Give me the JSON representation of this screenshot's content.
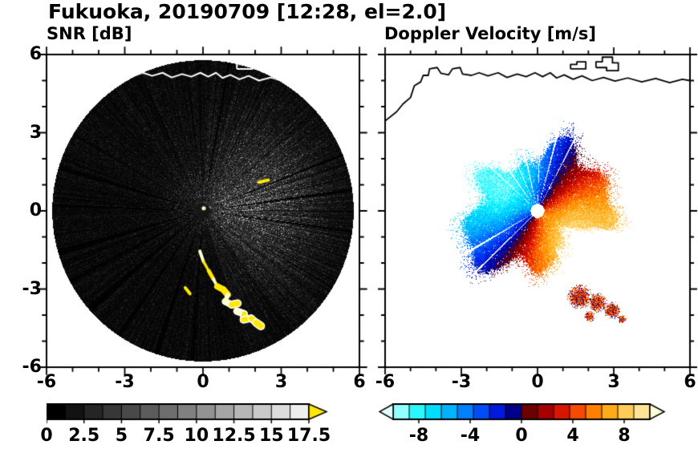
{
  "header": {
    "title": "Fukuoka, 20190709 [12:28, el=2.0]"
  },
  "panels": {
    "snr": {
      "title": "SNR [dB]",
      "x_tick_labels": [
        "-6",
        "-3",
        "0",
        "3",
        "6"
      ],
      "y_tick_labels": [
        "6",
        "3",
        "0",
        "-3",
        "-6"
      ],
      "colorbar_tick_labels": [
        "0",
        "2.5",
        "5",
        "7.5",
        "10",
        "12.5",
        "15",
        "17.5"
      ]
    },
    "doppler": {
      "title": "Doppler Velocity [m/s]",
      "x_tick_labels": [
        "-6",
        "-3",
        "0",
        "3",
        "6"
      ],
      "colorbar_tick_labels": [
        "-8",
        "-4",
        "0",
        "4",
        "8"
      ]
    }
  },
  "coastline": {
    "mainland": [
      [
        -6,
        3.45
      ],
      [
        -5.55,
        3.8
      ],
      [
        -5.3,
        4.1
      ],
      [
        -5.0,
        4.35
      ],
      [
        -4.85,
        4.8
      ],
      [
        -4.6,
        4.95
      ],
      [
        -4.5,
        5.2
      ],
      [
        -4.3,
        5.2
      ],
      [
        -4.25,
        5.45
      ],
      [
        -3.95,
        5.5
      ],
      [
        -3.8,
        5.28
      ],
      [
        -3.5,
        5.22
      ],
      [
        -3.35,
        5.45
      ],
      [
        -3.05,
        5.5
      ],
      [
        -2.95,
        5.25
      ],
      [
        -2.6,
        5.2
      ],
      [
        -2.3,
        5.3
      ],
      [
        -1.95,
        5.18
      ],
      [
        -1.55,
        5.3
      ],
      [
        -1.2,
        5.12
      ],
      [
        -0.8,
        5.25
      ],
      [
        -0.45,
        5.15
      ],
      [
        -0.1,
        5.3
      ],
      [
        0.2,
        5.15
      ],
      [
        0.5,
        5.3
      ],
      [
        0.75,
        5.1
      ],
      [
        1.05,
        5.22
      ],
      [
        1.4,
        5.05
      ],
      [
        1.75,
        5.18
      ],
      [
        2.15,
        5.0
      ],
      [
        2.6,
        5.12
      ],
      [
        3.05,
        4.98
      ],
      [
        3.55,
        5.1
      ],
      [
        4.1,
        4.95
      ],
      [
        4.65,
        5.08
      ],
      [
        5.2,
        4.92
      ],
      [
        5.7,
        5.05
      ],
      [
        6.0,
        5.0
      ]
    ],
    "islands": [
      [
        [
          1.3,
          5.45
        ],
        [
          1.9,
          5.45
        ],
        [
          1.9,
          5.72
        ],
        [
          1.55,
          5.72
        ],
        [
          1.55,
          5.62
        ],
        [
          1.3,
          5.62
        ],
        [
          1.3,
          5.45
        ]
      ],
      [
        [
          2.3,
          5.5
        ],
        [
          2.72,
          5.5
        ],
        [
          2.72,
          5.38
        ],
        [
          3.18,
          5.38
        ],
        [
          3.18,
          5.68
        ],
        [
          2.95,
          5.68
        ],
        [
          2.95,
          5.9
        ],
        [
          2.55,
          5.9
        ],
        [
          2.55,
          5.72
        ],
        [
          2.3,
          5.72
        ],
        [
          2.3,
          5.5
        ]
      ]
    ]
  },
  "chart_data": [
    {
      "type": "heatmap",
      "variant": "radar_ppi",
      "title": "SNR [dB]",
      "x_range": [
        -6,
        6
      ],
      "y_range": [
        -6,
        6
      ],
      "x_ticks": [
        -6,
        -3,
        0,
        3,
        6
      ],
      "y_ticks": [
        6,
        3,
        0,
        -3,
        -6
      ],
      "minor_tick_step": 1,
      "scan_radius_km": 5.78,
      "colorbar": {
        "min": 0,
        "max": 17.5,
        "ticks": [
          0,
          2.5,
          5,
          7.5,
          10,
          12.5,
          15,
          17.5
        ],
        "segments": 14,
        "colormap": "grayscale",
        "overflow_color": "#ffe800"
      },
      "background_in_circle": "#0a0a0a",
      "bright_fan": {
        "azimuth_deg": 8,
        "halfwidth_deg": 45,
        "note": "brighter clear-air SNR fan east of the radar"
      },
      "blocked_spokes": [
        [
          163,
          0.8
        ],
        [
          178,
          0.55
        ],
        [
          196,
          1.1
        ],
        [
          208,
          0.7
        ],
        [
          221,
          1.3
        ],
        [
          236,
          0.85
        ],
        [
          252,
          1.1
        ],
        [
          266,
          0.6
        ],
        [
          80,
          0.55
        ],
        [
          8,
          0.6
        ],
        [
          352,
          0.5
        ],
        [
          22,
          0.45
        ]
      ],
      "high_snr_arc": [
        [
          -0.12,
          -1.55
        ],
        [
          0.02,
          -1.95
        ],
        [
          0.22,
          -2.3
        ],
        [
          0.4,
          -2.62
        ],
        [
          0.55,
          -2.9
        ],
        [
          0.78,
          -3.02
        ],
        [
          0.95,
          -3.22
        ],
        [
          0.85,
          -3.48
        ],
        [
          1.1,
          -3.6
        ],
        [
          1.33,
          -3.55
        ],
        [
          1.3,
          -3.85
        ],
        [
          1.58,
          -3.95
        ],
        [
          1.55,
          -4.18
        ],
        [
          1.85,
          -4.12
        ],
        [
          2.05,
          -4.3
        ],
        [
          2.22,
          -4.42
        ]
      ],
      "extra_echoes": [
        [
          [
            2.15,
            1.1
          ],
          [
            2.5,
            1.18
          ]
        ],
        [
          [
            -0.68,
            -2.95
          ],
          [
            -0.5,
            -3.18
          ]
        ]
      ],
      "center": {
        "dark_disk_radius_km": 0.28,
        "dot_color": "#f2f2cc"
      },
      "coastline_color": "#ffffff",
      "annotation": "Black disk of radar coverage with grainy radial speckle; yellow arc of strong echoes curving south-southeast of the radar; white coastline across top."
    },
    {
      "type": "heatmap",
      "variant": "radar_ppi",
      "title": "Doppler Velocity [m/s]",
      "x_range": [
        -6,
        6
      ],
      "y_range": [
        -6,
        6
      ],
      "x_ticks": [
        -6,
        -3,
        0,
        3,
        6
      ],
      "y_ticks": [
        6,
        3,
        0,
        -3,
        -6
      ],
      "minor_tick_step": 1,
      "colorbar": {
        "min": -10,
        "max": 10,
        "ticks": [
          -8,
          -4,
          0,
          4,
          8
        ],
        "segments": 16,
        "stops": [
          [
            -10,
            "#ccffff"
          ],
          [
            -8.75,
            "#55ffff"
          ],
          [
            -7.5,
            "#00eeff"
          ],
          [
            -6.25,
            "#00ccff"
          ],
          [
            -5,
            "#0099ff"
          ],
          [
            -3.75,
            "#0066ff"
          ],
          [
            -2.5,
            "#0033ee"
          ],
          [
            -1.25,
            "#0000cc"
          ],
          [
            -0.3,
            "#000066"
          ],
          [
            0.3,
            "#5c0000"
          ],
          [
            1.25,
            "#8e0000"
          ],
          [
            2.5,
            "#c00000"
          ],
          [
            3.75,
            "#ee2a00"
          ],
          [
            5,
            "#ff6a00"
          ],
          [
            6.25,
            "#ff9500"
          ],
          [
            7.5,
            "#ffbe30"
          ],
          [
            8.75,
            "#ffd878"
          ],
          [
            10,
            "#fff0b8"
          ]
        ],
        "underflow_color": "#e0ffff",
        "overflow_color": "#ffffd8"
      },
      "dipole": {
        "vmax_ms": 8.7,
        "positive_azimuth_deg": -35,
        "note": "negative velocities (cyan/blue) northwest of radar, positive (red/orange/yellow) southeast"
      },
      "echo_mean_radius": 2.45,
      "white_spokes": [
        [
          62,
          0.5
        ],
        [
          75,
          0.7
        ],
        [
          88,
          0.5
        ],
        [
          103,
          0.8
        ],
        [
          114,
          0.6
        ],
        [
          126,
          0.9
        ],
        [
          138,
          0.5
        ],
        [
          210,
          0.8
        ],
        [
          224,
          0.6
        ]
      ],
      "detached_blobs": [
        {
          "x": 1.65,
          "y": -3.3,
          "r": 0.38
        },
        {
          "x": 2.35,
          "y": -3.52,
          "r": 0.3
        },
        {
          "x": 2.95,
          "y": -3.82,
          "r": 0.27
        },
        {
          "x": 2.05,
          "y": -4.05,
          "r": 0.17
        },
        {
          "x": 3.32,
          "y": -4.15,
          "r": 0.14
        }
      ],
      "coastline_color": "#000000",
      "annotation": "Velocity couplet centered on the radar: cyan/blue fan to the NW, dark navy near N-NE, dark red band SSW, orange/yellow fan to the E-SE; scattered red blobs far SE; black coastline across top."
    }
  ]
}
